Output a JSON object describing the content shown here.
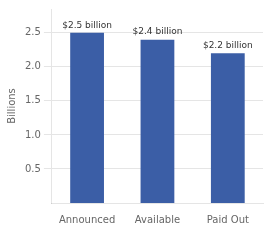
{
  "chart_data": {
    "type": "bar",
    "categories": [
      "Announced",
      "Available",
      "Paid Out"
    ],
    "values": [
      2.5,
      2.4,
      2.2
    ],
    "value_labels": [
      "$2.5 billion",
      "$2.4 billion",
      "$2.2 billion"
    ],
    "data_labels": true,
    "color": "#3B5EA6",
    "ylabel": "Billions",
    "ylim": [
      0,
      2.85
    ],
    "yticks": [
      0.5,
      {
        "value": 1.0,
        "label": "1.0"
      },
      1.5,
      {
        "value": 2.0,
        "label": "2.0"
      },
      2.5
    ],
    "grid": true
  }
}
